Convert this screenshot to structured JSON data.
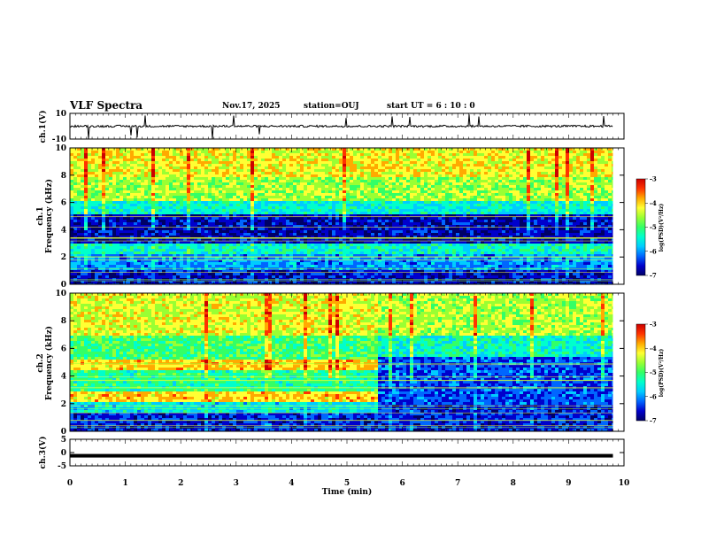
{
  "header": {
    "title": "VLF Spectra",
    "date": "Nov.17, 2025",
    "station": "station=OUJ",
    "start_ut": "start  UT =   6  : 10 : 0"
  },
  "colormap": [
    "#000066",
    "#0000cc",
    "#0066ff",
    "#00ccff",
    "#00ffcc",
    "#33ff66",
    "#99ff33",
    "#ffff33",
    "#ffaa00",
    "#ff3300",
    "#cc0000"
  ],
  "chart_data": [
    {
      "type": "line",
      "panel": "ch1-waveform",
      "ylabel": "ch.1(V)",
      "ylim": [
        -10,
        10
      ],
      "y_ticks": [
        "10",
        "-10"
      ],
      "baseline": 0,
      "description_values": {
        "x_range_min": [
          0,
          9.8
        ]
      }
    },
    {
      "type": "heatmap",
      "panel": "ch1-spectrogram",
      "ylabel": "ch.1\nFrequency (kHz)",
      "ylabel_lines": [
        "ch.1",
        "Frequency (kHz)"
      ],
      "ylim": [
        0,
        10
      ],
      "y_ticks": [
        "0",
        "2",
        "4",
        "6",
        "8",
        "10"
      ],
      "x_range_min": [
        0,
        9.8
      ],
      "colorbar": {
        "label": "log(PSD)(V²/Hz)",
        "ticks": [
          "-3",
          "-4",
          "-5",
          "-6",
          "-7"
        ],
        "range": [
          -7,
          -3
        ]
      },
      "bands_khz": [
        {
          "from": 0,
          "to": 1.2,
          "level": -6.6
        },
        {
          "from": 1.2,
          "to": 2.4,
          "level": -6.0
        },
        {
          "from": 2.4,
          "to": 3.0,
          "level": -5.4
        },
        {
          "from": 3.0,
          "to": 5.2,
          "level": -6.7
        },
        {
          "from": 5.2,
          "to": 6.2,
          "level": -5.5
        },
        {
          "from": 6.2,
          "to": 8.0,
          "level": -4.6
        },
        {
          "from": 8.0,
          "to": 10.0,
          "level": -4.2
        }
      ]
    },
    {
      "type": "heatmap",
      "panel": "ch2-spectrogram",
      "ylabel_lines": [
        "ch.2",
        "Frequency (kHz)"
      ],
      "ylim": [
        0,
        10
      ],
      "y_ticks": [
        "0",
        "2",
        "4",
        "6",
        "8",
        "10"
      ],
      "x_range_min": [
        0,
        9.8
      ],
      "change_time_min": 5.55,
      "colorbar": {
        "label": "log(PSD)(V²/Hz)",
        "ticks": [
          "-3",
          "-4",
          "-5",
          "-6",
          "-7"
        ],
        "range": [
          -7,
          -3
        ]
      },
      "bands_before_khz": [
        {
          "from": 0,
          "to": 1.5,
          "level": -6.5
        },
        {
          "from": 1.5,
          "to": 2.2,
          "level": -5.6
        },
        {
          "from": 2.2,
          "to": 2.9,
          "level": -4.0
        },
        {
          "from": 2.9,
          "to": 4.5,
          "level": -5.2
        },
        {
          "from": 4.5,
          "to": 5.3,
          "level": -4.0
        },
        {
          "from": 5.3,
          "to": 7.0,
          "level": -5.0
        },
        {
          "from": 7.0,
          "to": 10.0,
          "level": -4.3
        }
      ],
      "bands_after_khz": [
        {
          "from": 0,
          "to": 2.0,
          "level": -6.5
        },
        {
          "from": 2.0,
          "to": 5.5,
          "level": -6.3
        },
        {
          "from": 5.5,
          "to": 7.0,
          "level": -5.4
        },
        {
          "from": 7.0,
          "to": 10.0,
          "level": -4.5
        }
      ]
    },
    {
      "type": "line",
      "panel": "ch3-waveform",
      "ylabel": "ch.3(V)",
      "ylim": [
        -5,
        5
      ],
      "y_ticks": [
        "5",
        "0",
        "-5"
      ],
      "constant_value": -1.2,
      "x_range_min": [
        0,
        9.8
      ]
    }
  ],
  "x_axis": {
    "label": "Time (min)",
    "ticks": [
      "0",
      "1",
      "2",
      "3",
      "4",
      "5",
      "6",
      "7",
      "8",
      "9",
      "10"
    ],
    "xlim": [
      0,
      10
    ]
  }
}
